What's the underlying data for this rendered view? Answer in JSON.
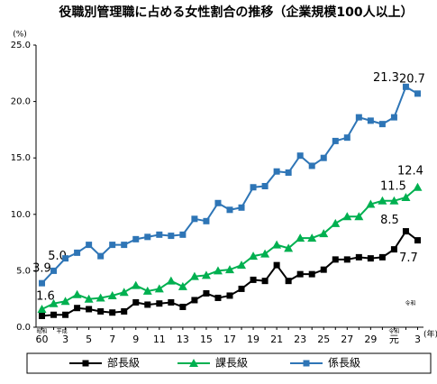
{
  "chart_data": {
    "type": "line",
    "title": "役職別管理職に占める女性割合の推移（企業規模100人以上）",
    "y_label": "(%)",
    "x_label": "(年)",
    "era_labels": [
      "昭和",
      "平成",
      "令和",
      "令和"
    ],
    "categories": [
      "60",
      null,
      "3",
      null,
      "5",
      null,
      "7",
      null,
      "9",
      null,
      "11",
      null,
      "13",
      null,
      "15",
      null,
      "17",
      null,
      "19",
      null,
      "21",
      null,
      "23",
      null,
      "25",
      null,
      "27",
      null,
      "29",
      null,
      "元",
      null,
      "3"
    ],
    "ylim": [
      0,
      25
    ],
    "yticks": [
      {
        "value": 0,
        "label": "0.0"
      },
      {
        "value": 5,
        "label": "5.0"
      },
      {
        "value": 10,
        "label": "10.0"
      },
      {
        "value": 15,
        "label": "15.0"
      },
      {
        "value": 20,
        "label": "20.0"
      },
      {
        "value": 25,
        "label": "25.0"
      }
    ],
    "series": [
      {
        "name": "部長級",
        "color": "#000000",
        "marker": "square",
        "values": [
          1.0,
          1.1,
          1.1,
          1.7,
          1.6,
          1.4,
          1.3,
          1.4,
          2.2,
          2.0,
          2.1,
          2.2,
          1.8,
          2.4,
          3.0,
          2.6,
          2.8,
          3.4,
          4.2,
          4.1,
          5.5,
          4.1,
          4.7,
          4.7,
          5.1,
          6.0,
          6.0,
          6.2,
          6.1,
          6.2,
          6.9,
          8.5,
          7.7
        ],
        "value_labels": [
          null,
          null,
          null,
          null,
          null,
          null,
          null,
          null,
          null,
          null,
          null,
          null,
          null,
          null,
          null,
          null,
          null,
          null,
          null,
          null,
          null,
          null,
          null,
          null,
          null,
          null,
          null,
          null,
          null,
          null,
          null,
          "8.5",
          "7.7"
        ]
      },
      {
        "name": "課長級",
        "color": "#00b050",
        "marker": "triangle",
        "values": [
          1.6,
          2.1,
          2.3,
          2.9,
          2.5,
          2.6,
          2.8,
          3.1,
          3.7,
          3.2,
          3.4,
          4.1,
          3.6,
          4.5,
          4.6,
          5.0,
          5.1,
          5.5,
          6.3,
          6.5,
          7.3,
          7.0,
          7.9,
          7.9,
          8.3,
          9.2,
          9.8,
          9.8,
          10.9,
          11.2,
          11.2,
          11.5,
          12.4
        ],
        "value_labels": [
          "1.6",
          null,
          null,
          null,
          null,
          null,
          null,
          null,
          null,
          null,
          null,
          null,
          null,
          null,
          null,
          null,
          null,
          null,
          null,
          null,
          null,
          null,
          null,
          null,
          null,
          null,
          null,
          null,
          null,
          null,
          null,
          "11.5",
          "12.4"
        ]
      },
      {
        "name": "係長級",
        "color": "#2e75b6",
        "marker": "square",
        "values": [
          3.9,
          5.0,
          6.1,
          6.6,
          7.3,
          6.3,
          7.3,
          7.3,
          7.8,
          8.0,
          8.2,
          8.1,
          8.2,
          9.6,
          9.4,
          11.0,
          10.4,
          10.6,
          12.4,
          12.5,
          13.8,
          13.7,
          15.2,
          14.3,
          15.0,
          16.5,
          16.8,
          18.6,
          18.3,
          18.0,
          18.6,
          21.3,
          20.7
        ],
        "value_labels": [
          "3.9",
          "5.0",
          null,
          null,
          null,
          null,
          null,
          null,
          null,
          null,
          null,
          null,
          null,
          null,
          null,
          null,
          null,
          null,
          null,
          null,
          null,
          null,
          null,
          null,
          null,
          null,
          null,
          null,
          null,
          null,
          null,
          "21.3",
          "20.7"
        ]
      }
    ],
    "legend": "bottom"
  }
}
